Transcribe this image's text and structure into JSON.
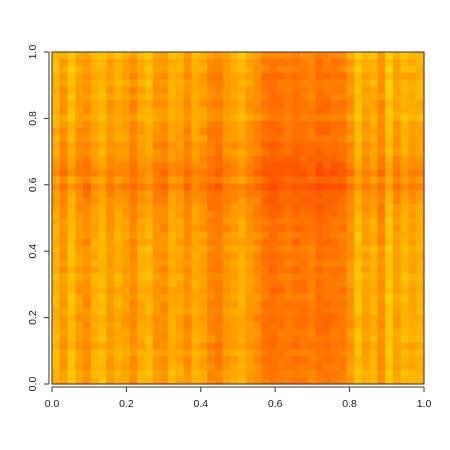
{
  "chart_data": {
    "type": "heatmap",
    "title": "",
    "xlabel": "",
    "ylabel": "",
    "xlim": [
      0,
      1
    ],
    "ylim": [
      0,
      1
    ],
    "grid": false,
    "legend": "none",
    "x_ticks": [
      0.0,
      0.2,
      0.4,
      0.6,
      0.8,
      1.0
    ],
    "x_tick_labels": [
      "0.0",
      "0.2",
      "0.4",
      "0.6",
      "0.8",
      "1.0"
    ],
    "y_ticks": [
      0.0,
      0.2,
      0.4,
      0.6,
      0.8,
      1.0
    ],
    "y_tick_labels": [
      "0.0",
      "0.2",
      "0.4",
      "0.6",
      "0.8",
      "1.0"
    ],
    "color_scale": {
      "low": "#ff0000",
      "mid": "#ff8000",
      "high": "#ffff00"
    },
    "column_levels": [
      0.72,
      0.55,
      0.8,
      0.6,
      0.5,
      0.68,
      0.75,
      0.58,
      0.7,
      0.62,
      0.48,
      0.66,
      0.74,
      0.56,
      0.52,
      0.7,
      0.64,
      0.5,
      0.68,
      0.6,
      0.46,
      0.4,
      0.55,
      0.62,
      0.7,
      0.58,
      0.5,
      0.36,
      0.3,
      0.34,
      0.38,
      0.32,
      0.35,
      0.4,
      0.3,
      0.34,
      0.36,
      0.38,
      0.55,
      0.8,
      0.62,
      0.72,
      0.5,
      0.85,
      0.6,
      0.75,
      0.66,
      0.7
    ],
    "row_levels": [
      0.82,
      0.68,
      0.76,
      0.6,
      0.72,
      0.64,
      0.7,
      0.58,
      0.66,
      0.74,
      0.6,
      0.55,
      0.62,
      0.5,
      0.58,
      0.45,
      0.4,
      0.3,
      0.5,
      0.28,
      0.42,
      0.48,
      0.52,
      0.56,
      0.62,
      0.58,
      0.66,
      0.6,
      0.7,
      0.64,
      0.68,
      0.62,
      0.72,
      0.66,
      0.6,
      0.7,
      0.64,
      0.68,
      0.58,
      0.62,
      0.66,
      0.7,
      0.6,
      0.72,
      0.64,
      0.68,
      0.74,
      0.7
    ]
  }
}
